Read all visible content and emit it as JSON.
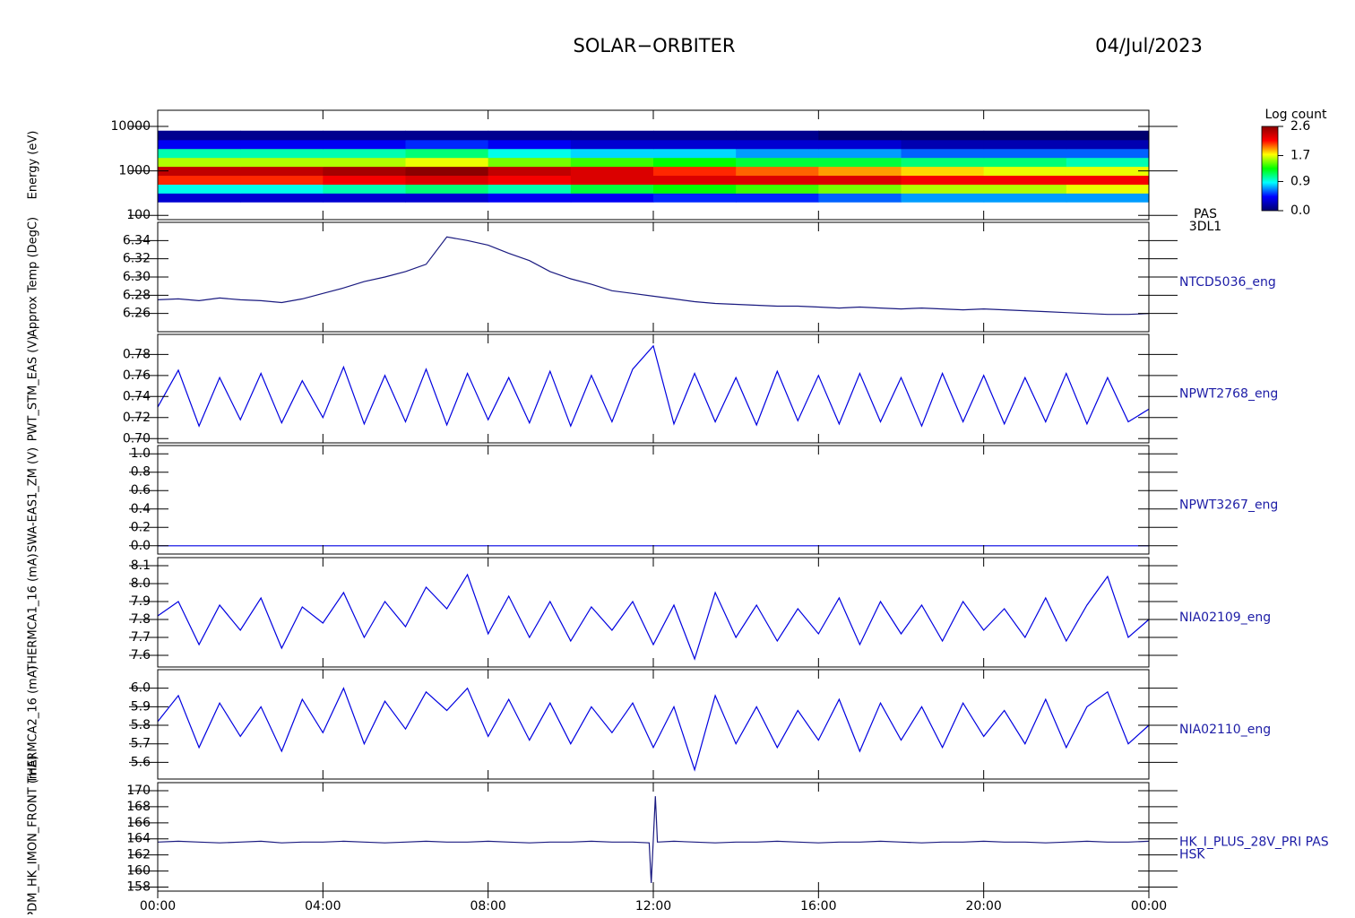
{
  "title": "SOLAR−ORBITER",
  "date": "04/Jul/2023",
  "chart_data": [
    {
      "type": "heatmap",
      "ylabel": "Energy (eV)",
      "label_lines": [
        "PAS",
        "3DL1"
      ],
      "ylog": true,
      "xlim": [
        0,
        24
      ],
      "ylim": [
        80,
        23000
      ],
      "yticks": [
        100,
        1000,
        10000
      ],
      "x_bins": [
        0,
        2,
        4,
        6,
        8,
        10,
        12,
        14,
        16,
        18,
        20,
        22,
        24
      ],
      "y_bins": [
        200,
        316,
        500,
        794,
        1259,
        1995,
        3162,
        5012,
        8000
      ],
      "values": [
        [
          0.3,
          0.3,
          0.3,
          0.3,
          0.4,
          0.4,
          0.5,
          0.5,
          0.6,
          0.7,
          0.7,
          0.7
        ],
        [
          0.9,
          0.9,
          1.0,
          1.1,
          1.0,
          1.2,
          1.3,
          1.4,
          1.5,
          1.6,
          1.6,
          1.7
        ],
        [
          2.1,
          2.1,
          2.2,
          2.3,
          2.2,
          2.3,
          2.3,
          2.3,
          2.3,
          2.2,
          2.2,
          2.2
        ],
        [
          2.4,
          2.4,
          2.5,
          2.6,
          2.4,
          2.3,
          2.1,
          2.0,
          1.9,
          1.8,
          1.7,
          1.7
        ],
        [
          1.6,
          1.6,
          1.6,
          1.7,
          1.5,
          1.4,
          1.3,
          1.2,
          1.2,
          1.1,
          1.1,
          1.0
        ],
        [
          1.0,
          1.0,
          1.0,
          1.1,
          0.9,
          0.8,
          0.8,
          0.7,
          0.7,
          0.6,
          0.6,
          0.6
        ],
        [
          0.4,
          0.4,
          0.4,
          0.5,
          0.4,
          0.3,
          0.3,
          0.3,
          0.3,
          0.2,
          0.2,
          0.2
        ],
        [
          0.1,
          0.1,
          0.1,
          0.1,
          0.1,
          0.1,
          0.1,
          0.1,
          0.0,
          0.0,
          0.0,
          0.0
        ]
      ],
      "colorbar_title": "Log count",
      "zlim": [
        0,
        2.6
      ],
      "zticks": [
        {
          "value": 0,
          "label": "0.0"
        },
        0.9,
        1.7,
        2.6
      ],
      "colormap": [
        "#00006e",
        "#0000ff",
        "#00ffff",
        "#00ff00",
        "#ffff00",
        "#ff0000",
        "#8b0000"
      ]
    },
    {
      "type": "line",
      "ylabel": "Approx Temp (DegC)",
      "label_lines": [
        "NTCD5036_eng"
      ],
      "color": "#1a1a80",
      "xlim": [
        0,
        24
      ],
      "ylim": [
        6.24,
        6.36
      ],
      "yticks": [
        6.26,
        6.28,
        {
          "value": 6.3,
          "label": "6.30"
        },
        6.32,
        6.34
      ],
      "x": [
        0,
        0.5,
        1,
        1.5,
        2,
        2.5,
        3,
        3.5,
        4,
        4.5,
        5,
        5.5,
        6,
        6.5,
        7,
        7.5,
        8,
        8.5,
        9,
        9.5,
        10,
        10.5,
        11,
        11.5,
        12,
        12.5,
        13,
        13.5,
        14,
        14.5,
        15,
        15.5,
        16,
        16.5,
        17,
        17.5,
        18,
        18.5,
        19,
        19.5,
        20,
        20.5,
        21,
        21.5,
        22,
        22.5,
        23,
        23.5,
        24
      ],
      "values": [
        6.275,
        6.276,
        6.274,
        6.277,
        6.275,
        6.274,
        6.272,
        6.276,
        6.282,
        6.288,
        6.295,
        6.3,
        6.306,
        6.314,
        6.344,
        6.34,
        6.335,
        6.326,
        6.318,
        6.306,
        6.298,
        6.292,
        6.285,
        6.282,
        6.279,
        6.276,
        6.273,
        6.271,
        6.27,
        6.269,
        6.268,
        6.268,
        6.267,
        6.266,
        6.267,
        6.266,
        6.265,
        6.266,
        6.265,
        6.264,
        6.265,
        6.264,
        6.263,
        6.262,
        6.261,
        6.26,
        6.259,
        6.259,
        6.26
      ]
    },
    {
      "type": "line",
      "ylabel": "PWT_STM_EAS (V)",
      "label_lines": [
        "NPWT2768_eng"
      ],
      "color": "#0000e0",
      "xlim": [
        0,
        24
      ],
      "ylim": [
        0.696,
        0.799
      ],
      "yticks": [
        {
          "value": 0.7,
          "label": "0.70"
        },
        0.72,
        0.74,
        0.76,
        0.78
      ],
      "x": [
        0,
        0.5,
        1,
        1.5,
        2,
        2.5,
        3,
        3.5,
        4,
        4.5,
        5,
        5.5,
        6,
        6.5,
        7,
        7.5,
        8,
        8.5,
        9,
        9.5,
        10,
        10.5,
        11,
        11.5,
        12,
        12.5,
        13,
        13.5,
        14,
        14.5,
        15,
        15.5,
        16,
        16.5,
        17,
        17.5,
        18,
        18.5,
        19,
        19.5,
        20,
        20.5,
        21,
        21.5,
        22,
        22.5,
        23,
        23.5,
        24
      ],
      "values": [
        0.73,
        0.765,
        0.712,
        0.758,
        0.718,
        0.762,
        0.715,
        0.755,
        0.72,
        0.768,
        0.714,
        0.76,
        0.716,
        0.766,
        0.713,
        0.762,
        0.718,
        0.758,
        0.715,
        0.764,
        0.712,
        0.76,
        0.716,
        0.766,
        0.788,
        0.714,
        0.762,
        0.716,
        0.758,
        0.713,
        0.764,
        0.717,
        0.76,
        0.714,
        0.762,
        0.716,
        0.758,
        0.712,
        0.762,
        0.716,
        0.76,
        0.714,
        0.758,
        0.716,
        0.762,
        0.714,
        0.758,
        0.716,
        0.728
      ]
    },
    {
      "type": "line",
      "ylabel": "SWA-EAS1_ZM (V)",
      "label_lines": [
        "NPWT3267_eng"
      ],
      "color": "#0000e0",
      "xlim": [
        0,
        24
      ],
      "ylim": [
        -0.09,
        1.09
      ],
      "yticks": [
        {
          "value": 0,
          "label": "0.0"
        },
        0.2,
        0.4,
        0.6,
        0.8,
        {
          "value": 1,
          "label": "1.0"
        }
      ],
      "x": [
        0,
        0.5,
        1,
        1.5,
        2,
        2.5,
        3,
        3.5,
        4,
        4.5,
        5,
        5.5,
        6,
        6.5,
        7,
        7.5,
        8,
        8.5,
        9,
        9.5,
        10,
        10.5,
        11,
        11.5,
        12,
        12.5,
        13,
        13.5,
        14,
        14.5,
        15,
        15.5,
        16,
        16.5,
        17,
        17.5,
        18,
        18.5,
        19,
        19.5,
        20,
        20.5,
        21,
        21.5,
        22,
        22.5,
        23,
        23.5,
        24
      ],
      "values": [
        0,
        0,
        0,
        0,
        0,
        0,
        0,
        0,
        0,
        0,
        0,
        0,
        0,
        0,
        0,
        0,
        0,
        0,
        0,
        0,
        0,
        0,
        0,
        0,
        0,
        0,
        0,
        0,
        0,
        0,
        0,
        0,
        0,
        0,
        0,
        0,
        0,
        0,
        0,
        0,
        0,
        0,
        0,
        0,
        0,
        0,
        0,
        0,
        0
      ]
    },
    {
      "type": "line",
      "ylabel": "THERMCA1_16 (mA)",
      "label_lines": [
        "NIA02109_eng"
      ],
      "color": "#0000e0",
      "xlim": [
        0,
        24
      ],
      "ylim": [
        7.535,
        8.145
      ],
      "yticks": [
        7.6,
        7.7,
        7.8,
        7.9,
        {
          "value": 8,
          "label": "8.0"
        },
        8.1
      ],
      "x": [
        0,
        0.5,
        1,
        1.5,
        2,
        2.5,
        3,
        3.5,
        4,
        4.5,
        5,
        5.5,
        6,
        6.5,
        7,
        7.5,
        8,
        8.5,
        9,
        9.5,
        10,
        10.5,
        11,
        11.5,
        12,
        12.5,
        13,
        13.5,
        14,
        14.5,
        15,
        15.5,
        16,
        16.5,
        17,
        17.5,
        18,
        18.5,
        19,
        19.5,
        20,
        20.5,
        21,
        21.5,
        22,
        22.5,
        23,
        23.5,
        24
      ],
      "values": [
        7.82,
        7.9,
        7.66,
        7.88,
        7.74,
        7.92,
        7.64,
        7.87,
        7.78,
        7.95,
        7.7,
        7.9,
        7.76,
        7.98,
        7.86,
        8.05,
        7.72,
        7.93,
        7.7,
        7.9,
        7.68,
        7.87,
        7.74,
        7.9,
        7.66,
        7.88,
        7.58,
        7.95,
        7.7,
        7.88,
        7.68,
        7.86,
        7.72,
        7.92,
        7.66,
        7.9,
        7.72,
        7.88,
        7.68,
        7.9,
        7.74,
        7.86,
        7.7,
        7.92,
        7.68,
        7.88,
        8.04,
        7.7,
        7.8
      ]
    },
    {
      "type": "line",
      "ylabel": "THERMCA2_16 (mA)",
      "label_lines": [
        "NIA02110_eng"
      ],
      "color": "#0000e0",
      "xlim": [
        0,
        24
      ],
      "ylim": [
        5.51,
        6.1
      ],
      "yticks": [
        5.6,
        5.7,
        5.8,
        5.9,
        {
          "value": 6,
          "label": "6.0"
        }
      ],
      "x": [
        0,
        0.5,
        1,
        1.5,
        2,
        2.5,
        3,
        3.5,
        4,
        4.5,
        5,
        5.5,
        6,
        6.5,
        7,
        7.5,
        8,
        8.5,
        9,
        9.5,
        10,
        10.5,
        11,
        11.5,
        12,
        12.5,
        13,
        13.5,
        14,
        14.5,
        15,
        15.5,
        16,
        16.5,
        17,
        17.5,
        18,
        18.5,
        19,
        19.5,
        20,
        20.5,
        21,
        21.5,
        22,
        22.5,
        23,
        23.5,
        24
      ],
      "values": [
        5.82,
        5.96,
        5.68,
        5.92,
        5.74,
        5.9,
        5.66,
        5.94,
        5.76,
        6.0,
        5.7,
        5.93,
        5.78,
        5.98,
        5.88,
        6.0,
        5.74,
        5.94,
        5.72,
        5.92,
        5.7,
        5.9,
        5.76,
        5.92,
        5.68,
        5.9,
        5.56,
        5.96,
        5.7,
        5.9,
        5.68,
        5.88,
        5.72,
        5.94,
        5.66,
        5.92,
        5.72,
        5.9,
        5.68,
        5.92,
        5.74,
        5.88,
        5.7,
        5.94,
        5.68,
        5.9,
        5.98,
        5.7,
        5.8
      ]
    },
    {
      "type": "line",
      "ylabel": "PDM_HK_IMON_FRONT (mA)",
      "label_lines": [
        "HK_I_PLUS_28V_PRI PAS",
        "HSK"
      ],
      "color": "#1a1a80",
      "xlim": [
        0,
        24
      ],
      "ylim": [
        157.5,
        171
      ],
      "yticks": [
        158,
        160,
        162,
        164,
        166,
        168,
        170
      ],
      "xticks": [
        {
          "value": 0,
          "label": "00:00"
        },
        {
          "value": 4,
          "label": "04:00"
        },
        {
          "value": 8,
          "label": "08:00"
        },
        {
          "value": 12,
          "label": "12:00"
        },
        {
          "value": 16,
          "label": "16:00"
        },
        {
          "value": 20,
          "label": "20:00"
        },
        {
          "value": 24,
          "label": "00:00"
        }
      ],
      "x": [
        0,
        0.5,
        1,
        1.5,
        2,
        2.5,
        3,
        3.5,
        4,
        4.5,
        5,
        5.5,
        6,
        6.5,
        7,
        7.5,
        8,
        8.5,
        9,
        9.5,
        10,
        10.5,
        11,
        11.5,
        11.9,
        11.95,
        12.05,
        12.1,
        12.5,
        13,
        13.5,
        14,
        14.5,
        15,
        15.5,
        16,
        16.5,
        17,
        17.5,
        18,
        18.5,
        19,
        19.5,
        20,
        20.5,
        21,
        21.5,
        22,
        22.5,
        23,
        23.5,
        24
      ],
      "values": [
        163.6,
        163.7,
        163.6,
        163.5,
        163.6,
        163.7,
        163.5,
        163.6,
        163.6,
        163.7,
        163.6,
        163.5,
        163.6,
        163.7,
        163.6,
        163.6,
        163.7,
        163.6,
        163.5,
        163.6,
        163.6,
        163.7,
        163.6,
        163.6,
        163.5,
        158.5,
        169.3,
        163.6,
        163.7,
        163.6,
        163.5,
        163.6,
        163.6,
        163.7,
        163.6,
        163.5,
        163.6,
        163.6,
        163.7,
        163.6,
        163.5,
        163.6,
        163.6,
        163.7,
        163.6,
        163.6,
        163.5,
        163.6,
        163.7,
        163.6,
        163.6,
        163.7
      ]
    }
  ]
}
